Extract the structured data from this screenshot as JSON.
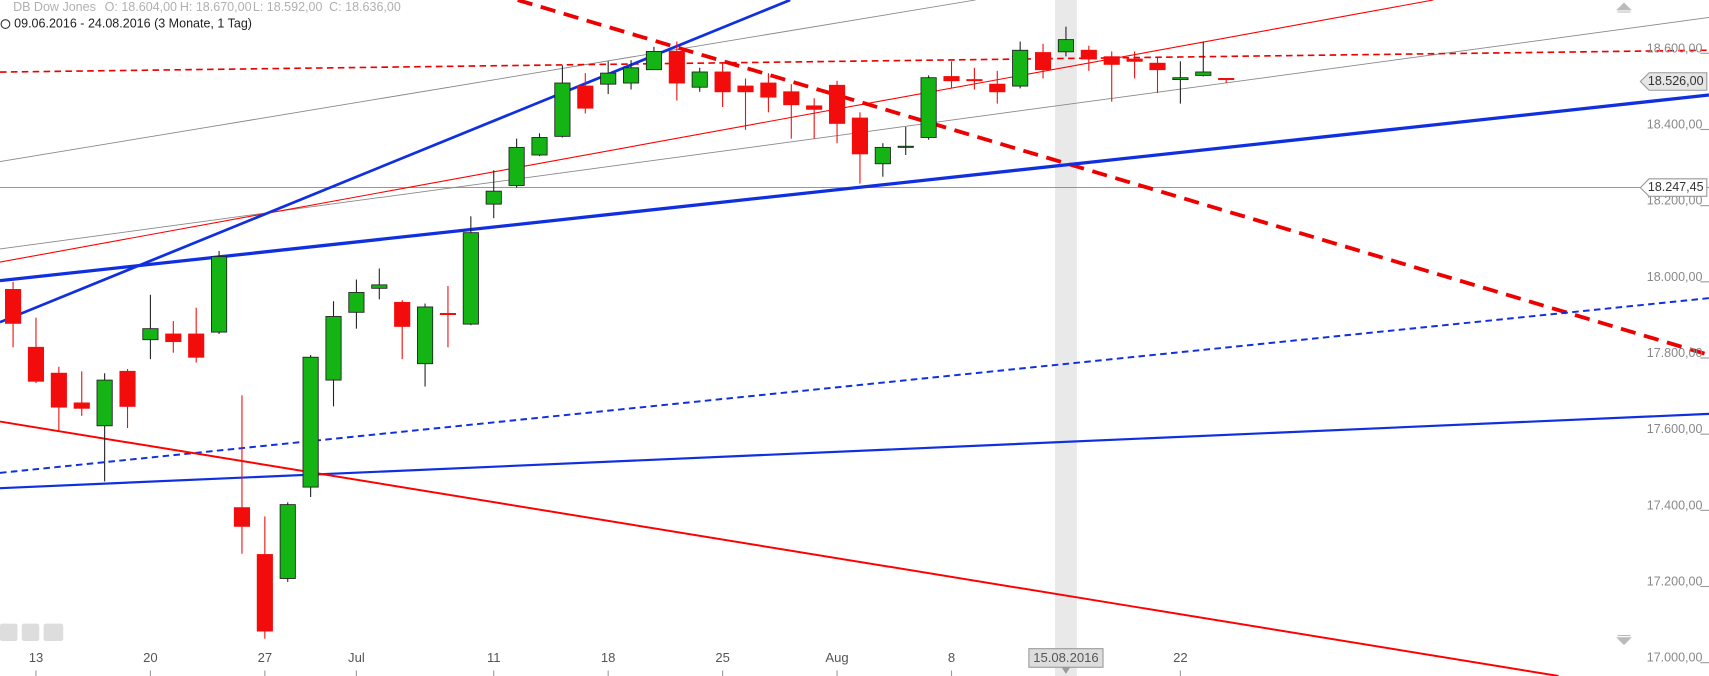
{
  "chart_data": {
    "type": "candlestick",
    "title": "DB Dow Jones",
    "ohlc": [
      "O: 18.604,00",
      "H: 18.670,00",
      "L: 18.592,00",
      "C: 18.636,00"
    ],
    "subtitle": "09.06.2016 - 24.08.2016 (3 Monate, 1 Tag)",
    "categories": [
      null,
      "13",
      null,
      null,
      null,
      null,
      "20",
      null,
      null,
      null,
      null,
      "27",
      null,
      null,
      null,
      "Jul",
      null,
      null,
      null,
      null,
      null,
      "11",
      null,
      null,
      null,
      null,
      "18",
      null,
      null,
      null,
      null,
      "25",
      null,
      null,
      null,
      null,
      "Aug",
      null,
      null,
      null,
      null,
      "8",
      null,
      null,
      null,
      null,
      "15.08.2016",
      null,
      null,
      null,
      null,
      "22",
      null,
      null
    ],
    "open": [
      17980,
      17828,
      17760,
      17682,
      17622,
      17765,
      17848,
      17863,
      17863,
      17868,
      17407,
      17284,
      17221,
      17461,
      17742,
      17920,
      17983,
      17946,
      17785,
      17917,
      17889,
      18204,
      18253,
      18333,
      18382,
      18514,
      18519,
      18522,
      18557,
      18605,
      18511,
      18551,
      18514,
      18522,
      18499,
      18462,
      18516,
      18430,
      18310,
      18353,
      18379,
      18539,
      18531,
      18519,
      18514,
      18602,
      18604,
      18608,
      18591,
      18585,
      18574,
      18531,
      18542,
      18534
    ],
    "high": [
      18000,
      17906,
      17777,
      17765,
      17760,
      17771,
      17966,
      17897,
      17932,
      18081,
      17702,
      17384,
      17421,
      17808,
      17949,
      18006,
      18035,
      17952,
      17943,
      17989,
      18172,
      18293,
      18376,
      18390,
      18568,
      18548,
      18579,
      18582,
      18617,
      18631,
      18562,
      18577,
      18534,
      18548,
      18519,
      18482,
      18528,
      18445,
      18364,
      18407,
      18542,
      18579,
      18562,
      18554,
      18631,
      18625,
      18670,
      18620,
      18605,
      18605,
      18588,
      18579,
      18631,
      18534
    ],
    "low": [
      17828,
      17734,
      17610,
      17648,
      17476,
      17616,
      17797,
      17814,
      17788,
      17863,
      17286,
      17063,
      17212,
      17435,
      17673,
      17877,
      17954,
      17797,
      17725,
      17828,
      17886,
      18167,
      18247,
      18330,
      18379,
      18442,
      18493,
      18505,
      18557,
      18476,
      18499,
      18459,
      18399,
      18445,
      18376,
      18376,
      18364,
      18258,
      18276,
      18333,
      18373,
      18508,
      18505,
      18468,
      18508,
      18534,
      18592,
      18554,
      18473,
      18534,
      18496,
      18468,
      18539,
      18522
    ],
    "close": [
      17891,
      17739,
      17671,
      17668,
      17742,
      17673,
      17877,
      17843,
      17802,
      18066,
      17358,
      17083,
      17415,
      17802,
      17909,
      17972,
      17992,
      17883,
      17934,
      17914,
      18129,
      18238,
      18353,
      18379,
      18522,
      18456,
      18548,
      18562,
      18605,
      18522,
      18551,
      18499,
      18499,
      18485,
      18465,
      18453,
      18416,
      18336,
      18353,
      18356,
      18536,
      18528,
      18528,
      18499,
      18608,
      18557,
      18636,
      18585,
      18571,
      18579,
      18557,
      18536,
      18551,
      18531
    ],
    "up_color": "#14b414",
    "down_color": "#f20c0c",
    "ylim": [
      16965,
      18740
    ],
    "yticks": [
      {
        "value": 17000,
        "label": "17.000,00"
      },
      {
        "value": 17200,
        "label": "17.200,00"
      },
      {
        "value": 17400,
        "label": "17.400,00"
      },
      {
        "value": 17600,
        "label": "17.600,00"
      },
      {
        "value": 17800,
        "label": "17.800,00"
      },
      {
        "value": 18000,
        "label": "18.000,00"
      },
      {
        "value": 18200,
        "label": "18.200,00"
      },
      {
        "value": 18400,
        "label": "18.400,00"
      },
      {
        "value": 18600,
        "label": "18.600,00"
      }
    ],
    "price_labels": [
      {
        "value": 18526,
        "label": "18.526,00"
      },
      {
        "value": 18247.45,
        "label": "18.247,45"
      }
    ],
    "highlight_index": 46
  }
}
